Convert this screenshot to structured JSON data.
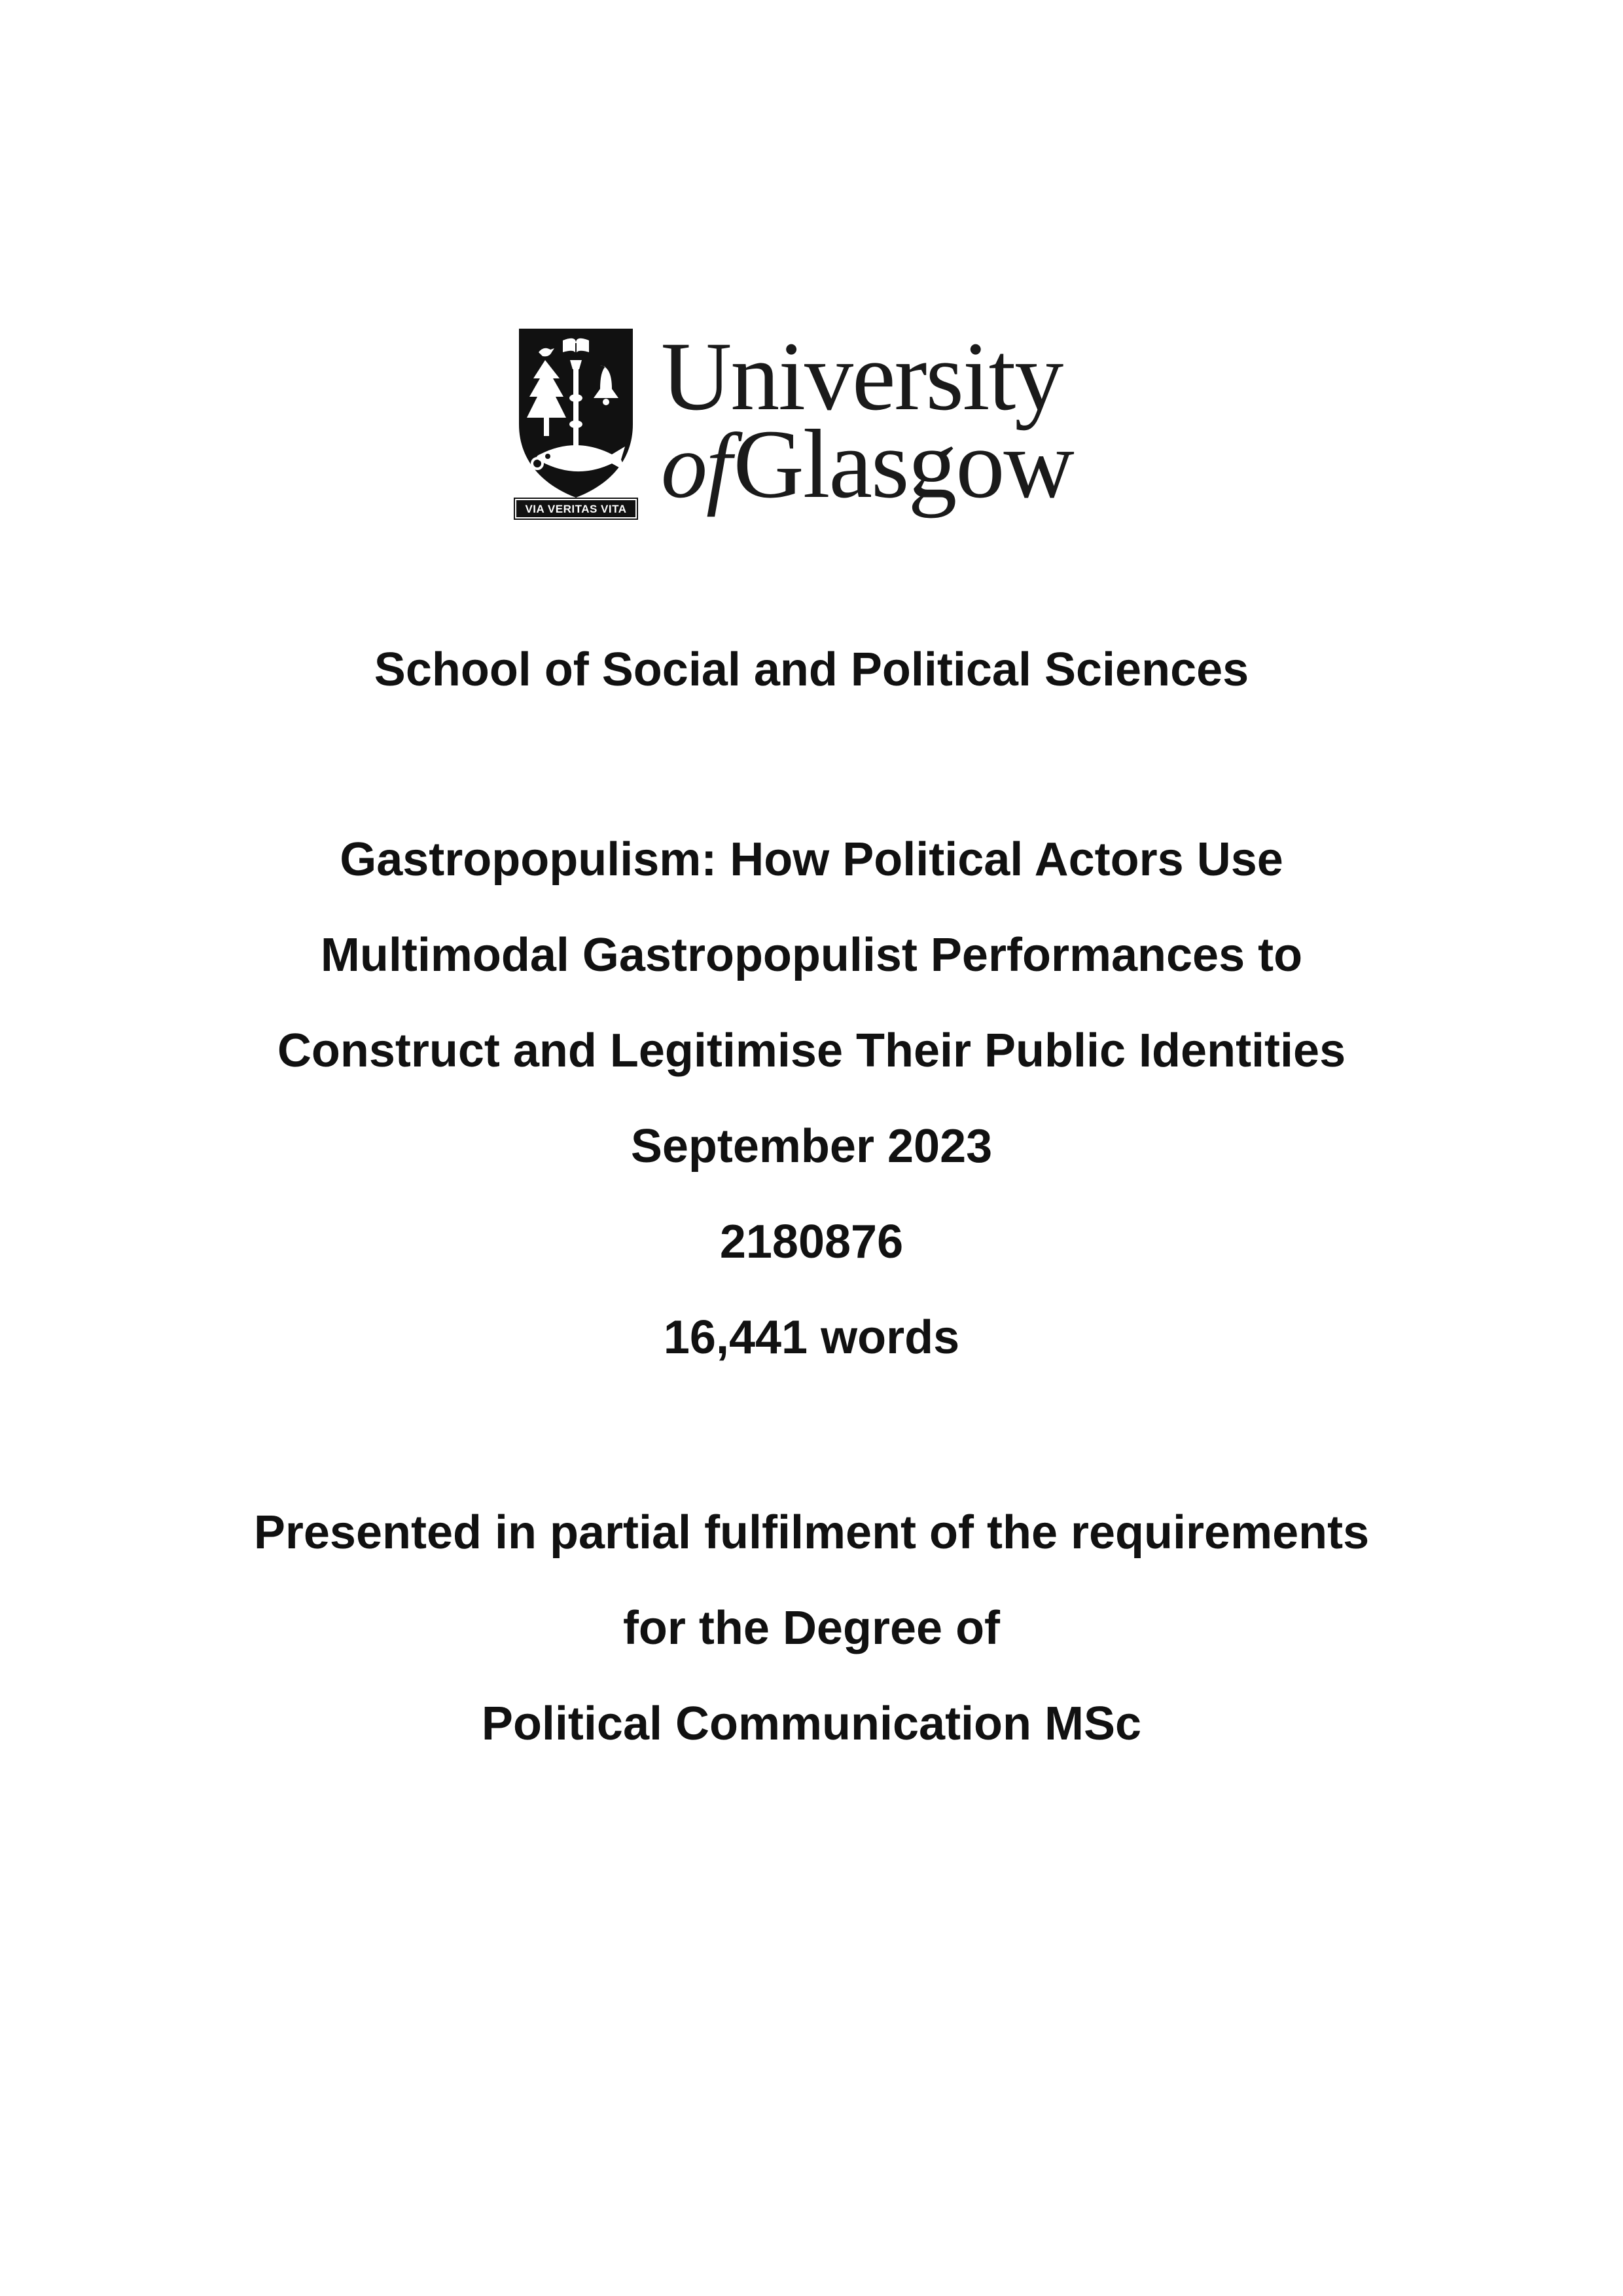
{
  "logo": {
    "motto": "VIA VERITAS VITA",
    "wordmark_line1": "University",
    "wordmark_of": "of",
    "wordmark_line2": "Glasgow",
    "crest_icon": "university-crest-icon"
  },
  "school": "School of Social and Political Sciences",
  "thesis": {
    "title_lines": [
      "Gastropopulism: How Political Actors Use",
      "Multimodal Gastropopulist Performances to",
      "Construct and Legitimise Their Public Identities"
    ],
    "date": "September 2023",
    "student_id": "2180876",
    "word_count": "16,441 words"
  },
  "statement": {
    "lines": [
      "Presented in partial fulfilment of the requirements",
      "for the Degree of",
      "Political Communication MSc"
    ]
  }
}
